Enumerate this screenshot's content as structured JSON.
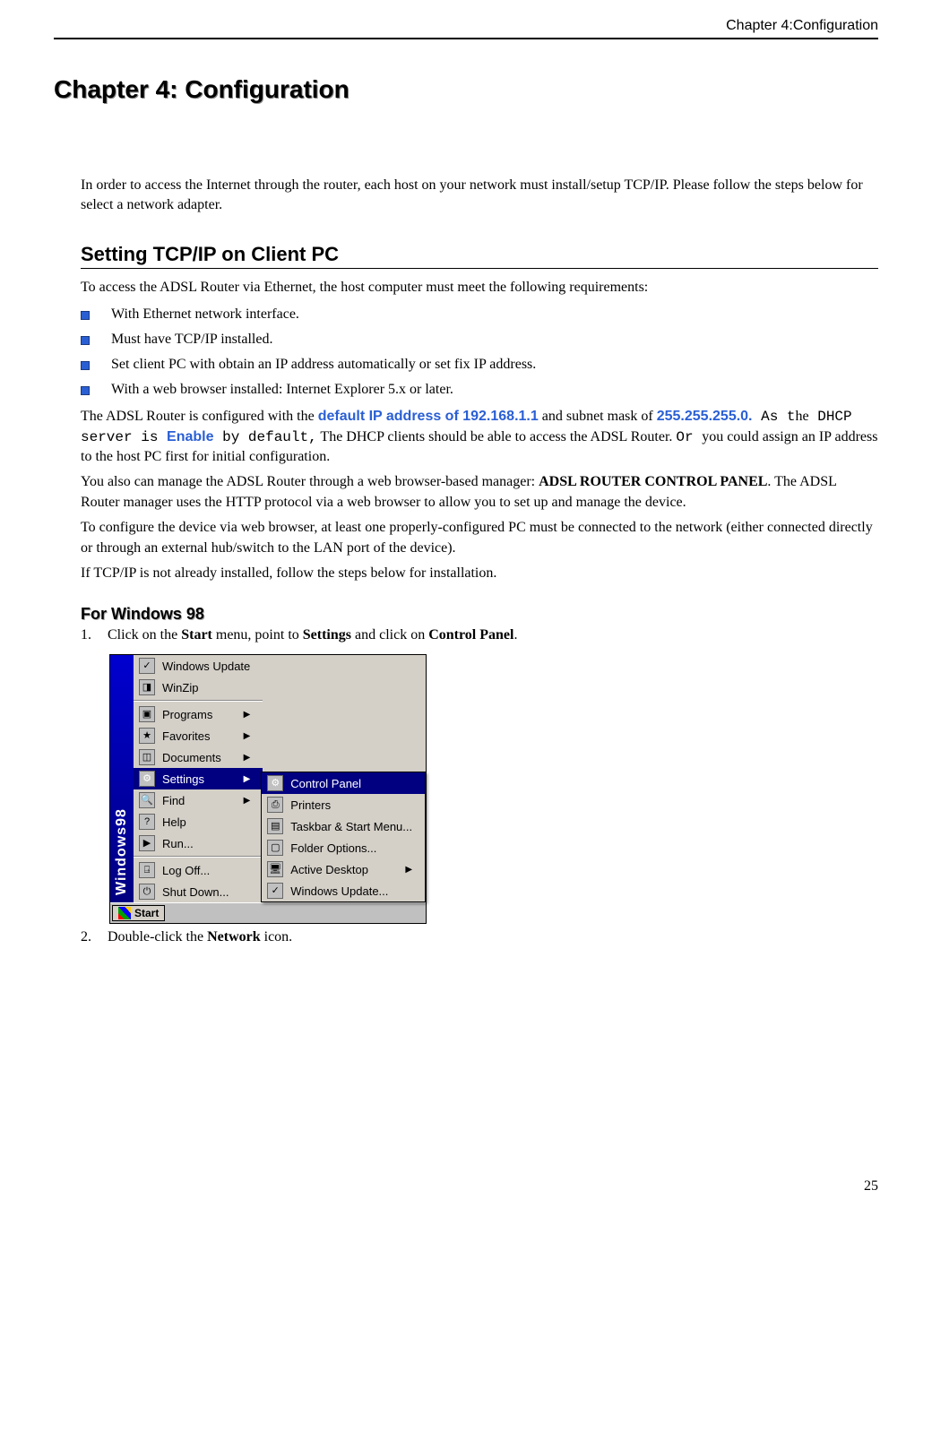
{
  "header": {
    "running": "Chapter 4:Configuration"
  },
  "chapter": {
    "title": "Chapter 4: Configuration"
  },
  "intro": "In order to access the Internet through the router, each host on your network must install/setup TCP/IP. Please follow the steps below for select a network adapter.",
  "section1": {
    "title": "Setting TCP/IP on Client PC",
    "lead": "To access the ADSL Router via Ethernet, the host computer must meet the following requirements:",
    "bullets": [
      "With Ethernet network interface.",
      "Must have TCP/IP installed.",
      "Set client PC with obtain an IP address automatically or set fix IP address.",
      "With a web browser installed: Internet Explorer 5.x or later."
    ],
    "para2": {
      "t1": "The ADSL Router is configured with the ",
      "ip_label": "default IP address of 192.168.1.1",
      "t2": "  and subnet mask of ",
      "mask_label": "255.255.255.0.",
      "mono1": " As t",
      "t2b": "he",
      "mono1b": " DHCP server is ",
      "enable": "Enable",
      "mono2": " by default,",
      "t3": "  The DHCP clients should be able to access the ADSL Router. ",
      "mono3": " Or ",
      "t4": " you could assign an IP address to the host PC first for initial configuration."
    },
    "para3a": "You also can manage the ADSL Router through a web browser-based manager: ",
    "para3b": "ADSL ROUTER CONTROL PANEL",
    "para3c": ". The ADSL Router manager uses the HTTP protocol via a web browser to allow you to set up and manage the device.",
    "para4": "To configure the device via web browser, at least one properly-configured PC must be connected to the network (either connected directly or through an external hub/switch to the LAN port of the device).",
    "para5": "If TCP/IP is not already installed, follow the steps below for installation."
  },
  "subsection": {
    "title": "For Windows 98",
    "steps": [
      {
        "num": "1.",
        "pre": "Click on the ",
        "b1": "Start",
        "mid1": " menu, point to ",
        "b2": "Settings",
        "mid2": " and click on ",
        "b3": "Control Panel",
        "post": "."
      },
      {
        "num": "2.",
        "pre": "Double-click the ",
        "b1": "Network",
        "post": " icon."
      }
    ]
  },
  "startmenu": {
    "stripe": "Windows98",
    "items": [
      "Windows Update",
      "WinZip",
      "Programs",
      "Favorites",
      "Documents",
      "Settings",
      "Find",
      "Help",
      "Run...",
      "Log Off...",
      "Shut Down..."
    ],
    "submenu": [
      "Control Panel",
      "Printers",
      "Taskbar & Start Menu...",
      "Folder Options...",
      "Active Desktop",
      "Windows Update..."
    ],
    "start_label": "Start"
  },
  "page_number": "25",
  "colors": {
    "bullet": "#2a5fd4",
    "highlight": "#2a5fd4",
    "menu_hl_bg": "#000080"
  }
}
